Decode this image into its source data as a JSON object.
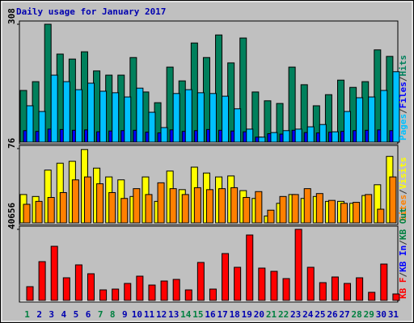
{
  "chart_data": {
    "type": "bar",
    "title": "Daily usage for January 2017",
    "separator": "/",
    "categories": [
      "1",
      "2",
      "3",
      "4",
      "5",
      "6",
      "7",
      "8",
      "9",
      "10",
      "11",
      "12",
      "13",
      "14",
      "15",
      "16",
      "17",
      "18",
      "19",
      "20",
      "21",
      "22",
      "23",
      "24",
      "25",
      "26",
      "27",
      "28",
      "29",
      "30",
      "31"
    ],
    "category_colors": [
      "#008040",
      "#0000b0",
      "#0000b0",
      "#0000b0",
      "#0000b0",
      "#0000b0",
      "#008040",
      "#008040",
      "#0000b0",
      "#0000b0",
      "#0000b0",
      "#0000b0",
      "#0000b0",
      "#008040",
      "#008040",
      "#0000b0",
      "#0000b0",
      "#0000b0",
      "#0000b0",
      "#0000b0",
      "#008040",
      "#008040",
      "#0000b0",
      "#0000b0",
      "#0000b0",
      "#0000b0",
      "#0000b0",
      "#008040",
      "#008040",
      "#0000b0",
      "#0000b0"
    ],
    "panels": [
      {
        "ylim": [
          0,
          308
        ],
        "yticks": [
          308
        ],
        "series": [
          {
            "name": "Pages",
            "color": "#00c0ff",
            "values": [
              95,
              80,
              175,
              158,
              137,
              154,
              133,
              129,
              118,
              141,
              78,
              38,
              127,
              137,
              129,
              127,
              120,
              87,
              34,
              13,
              25,
              30,
              34,
              40,
              46,
              27,
              80,
              116,
              118,
              135,
              184
            ]
          },
          {
            "name": "Files",
            "color": "#0000ff",
            "values": [
              30,
              28,
              34,
              33,
              31,
              32,
              27,
              29,
              30,
              31,
              26,
              24,
              32,
              28,
              30,
              33,
              31,
              29,
              27,
              13,
              22,
              21,
              31,
              25,
              24,
              26,
              28,
              30,
              31,
              32,
              30
            ]
          },
          {
            "name": "Hits",
            "color": "#00805c",
            "values": [
              135,
              158,
              308,
              230,
              217,
              236,
              186,
              175,
              175,
              221,
              131,
              103,
              196,
              160,
              259,
              221,
              280,
              207,
              272,
              131,
              108,
              101,
              196,
              150,
              95,
              124,
              162,
              143,
              158,
              241,
              224
            ]
          }
        ]
      },
      {
        "ylim": [
          0,
          76
        ],
        "yticks": [
          76
        ],
        "series": [
          {
            "name": "Sites",
            "color": "#ff8000",
            "values": [
              19,
              22,
              26,
              31,
              44,
              47,
              40,
              31,
              25,
              35,
              29,
              41,
              35,
              29,
              36,
              34,
              35,
              36,
              26,
              32,
              13,
              27,
              29,
              35,
              30,
              23,
              20,
              21,
              29,
              14,
              47
            ]
          },
          {
            "name": "Visits",
            "color": "#ffff00",
            "values": [
              29,
              27,
              54,
              61,
              63,
              75,
              56,
              47,
              44,
              27,
              47,
              22,
              53,
              34,
              57,
              51,
              47,
              48,
              33,
              25,
              7,
              20,
              29,
              25,
              27,
              22,
              22,
              20,
              28,
              39,
              68
            ]
          }
        ]
      },
      {
        "ylim": [
          0,
          40656
        ],
        "yticks": [
          40656
        ],
        "series": [
          {
            "name": "KB F",
            "color": "#ff0000",
            "values": [
              7854,
              22176,
              30953,
              12936,
              20328,
              15246,
              6006,
              6468,
              9702,
              13860,
              8778,
              11088,
              12012,
              6006,
              21714,
              6468,
              26796,
              18942,
              37422,
              18480,
              16632,
              12474,
              40656,
              18942,
              10164,
              13398,
              9702,
              12936,
              4620,
              20790,
              3696
            ]
          },
          {
            "name": "KB In",
            "color": "#0000ff",
            "values": [
              0,
              0,
              0,
              0,
              0,
              0,
              0,
              0,
              0,
              0,
              0,
              0,
              0,
              0,
              0,
              0,
              0,
              0,
              0,
              0,
              0,
              0,
              0,
              0,
              0,
              0,
              0,
              0,
              0,
              0,
              0
            ]
          },
          {
            "name": "KB Out",
            "color": "#008040",
            "values": [
              0,
              0,
              0,
              0,
              0,
              0,
              0,
              0,
              0,
              0,
              0,
              0,
              0,
              0,
              0,
              0,
              0,
              0,
              0,
              0,
              0,
              0,
              0,
              0,
              0,
              0,
              0,
              0,
              0,
              0,
              0
            ]
          }
        ]
      }
    ]
  }
}
